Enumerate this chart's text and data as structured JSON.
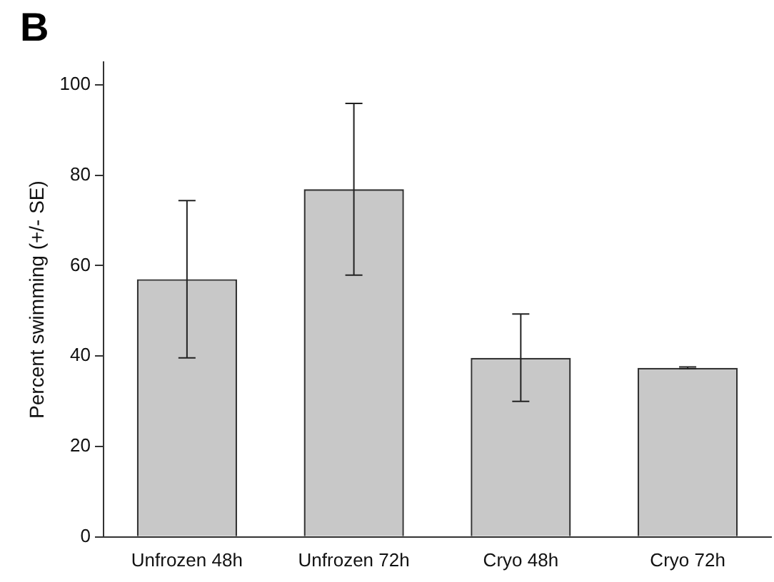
{
  "chart_data": {
    "type": "bar",
    "title": "B",
    "ylabel": "Percent swimming (+/- SE)",
    "categories": [
      "Unfrozen 48h",
      "Unfrozen 72h",
      "Cryo 48h",
      "Cryo 72h"
    ],
    "values": [
      57.0,
      76.9,
      39.6,
      37.4
    ],
    "errors": [
      [
        39.6,
        74.4
      ],
      [
        57.9,
        95.9
      ],
      [
        30.0,
        49.3
      ],
      [
        37.2,
        37.6
      ]
    ],
    "color": "#c8c8c8",
    "ylim": [
      0,
      105
    ],
    "yticks": [
      0,
      20,
      40,
      60,
      80,
      100
    ],
    "grid": false,
    "legend": false
  }
}
